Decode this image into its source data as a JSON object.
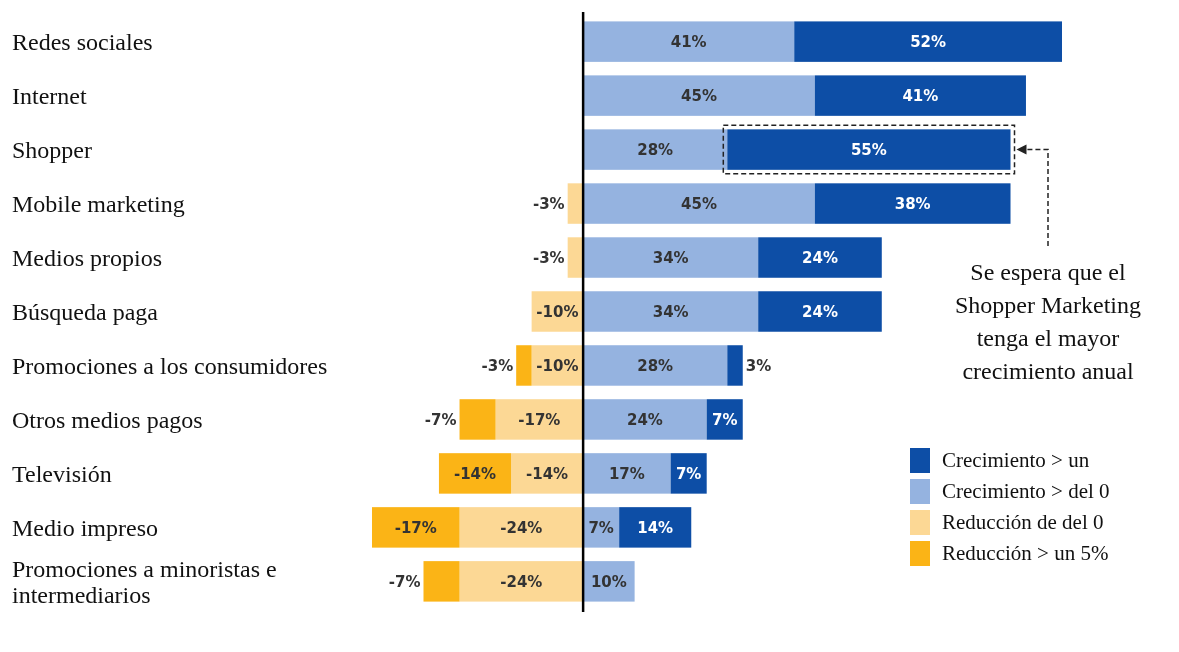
{
  "chart_data": {
    "type": "bar",
    "orientation": "horizontal",
    "stacked": true,
    "legend": "bottom right",
    "categories": [
      "Redes sociales",
      "Internet",
      "Shopper",
      "Mobile marketing",
      "Medios propios",
      "Búsqueda paga",
      "Promociones a los consumidores",
      "Otros medios pagos",
      "Televisión",
      "Medio impreso",
      "Promociones a minoristas e intermediarios"
    ],
    "series": [
      {
        "name": "Crecimiento > del 0",
        "color": "#95b3e0",
        "values": [
          41,
          45,
          28,
          45,
          34,
          34,
          28,
          24,
          17,
          7,
          10
        ],
        "value_labels": [
          "41%",
          "45%",
          "28%",
          "45%",
          "34%",
          "34%",
          "28%",
          "24%",
          "17%",
          "7%",
          "10%"
        ]
      },
      {
        "name": "Crecimiento > un",
        "color": "#0d4ea6",
        "values": [
          52,
          41,
          55,
          38,
          24,
          24,
          3,
          7,
          7,
          14,
          null
        ],
        "value_labels": [
          "52%",
          "41%",
          "55%",
          "38%",
          "24%",
          "24%",
          "3%",
          "7%",
          "7%",
          "14%",
          null
        ]
      },
      {
        "name": "Reducción de del 0",
        "color": "#fcd895",
        "values": [
          null,
          null,
          null,
          -3,
          -3,
          -10,
          -10,
          -17,
          -14,
          -24,
          -24
        ],
        "value_labels": [
          null,
          null,
          null,
          "-3%",
          "-3%",
          "-10%",
          "-10%",
          "-17%",
          "-14%",
          "-24%",
          "-24%"
        ]
      },
      {
        "name": "Reducción > un 5%",
        "color": "#fbb416",
        "values": [
          null,
          null,
          null,
          null,
          null,
          null,
          -3,
          -7,
          -14,
          -17,
          -7
        ],
        "value_labels": [
          null,
          null,
          null,
          null,
          null,
          null,
          "-3%",
          "-7%",
          "-14%",
          "-17%",
          "-7%"
        ]
      }
    ],
    "annotations": [
      "Se espera que el Shopper Marketing tenga el mayor crecimiento anual"
    ]
  }
}
